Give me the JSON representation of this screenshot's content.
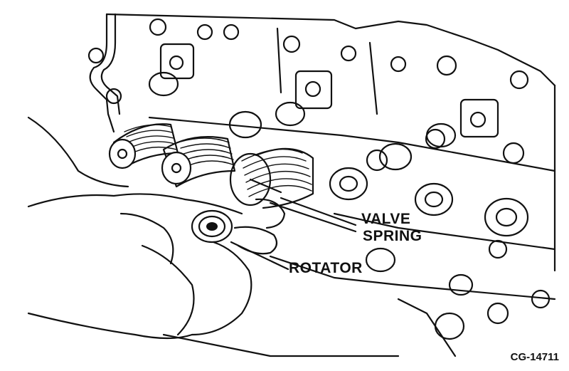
{
  "labels": {
    "valve_spring_line1": "VALVE",
    "valve_spring_line2": "SPRING",
    "rotator": "ROTATOR"
  },
  "figure_id": "CG-14711",
  "colors": {
    "ink": "#111111",
    "paper": "#ffffff"
  }
}
